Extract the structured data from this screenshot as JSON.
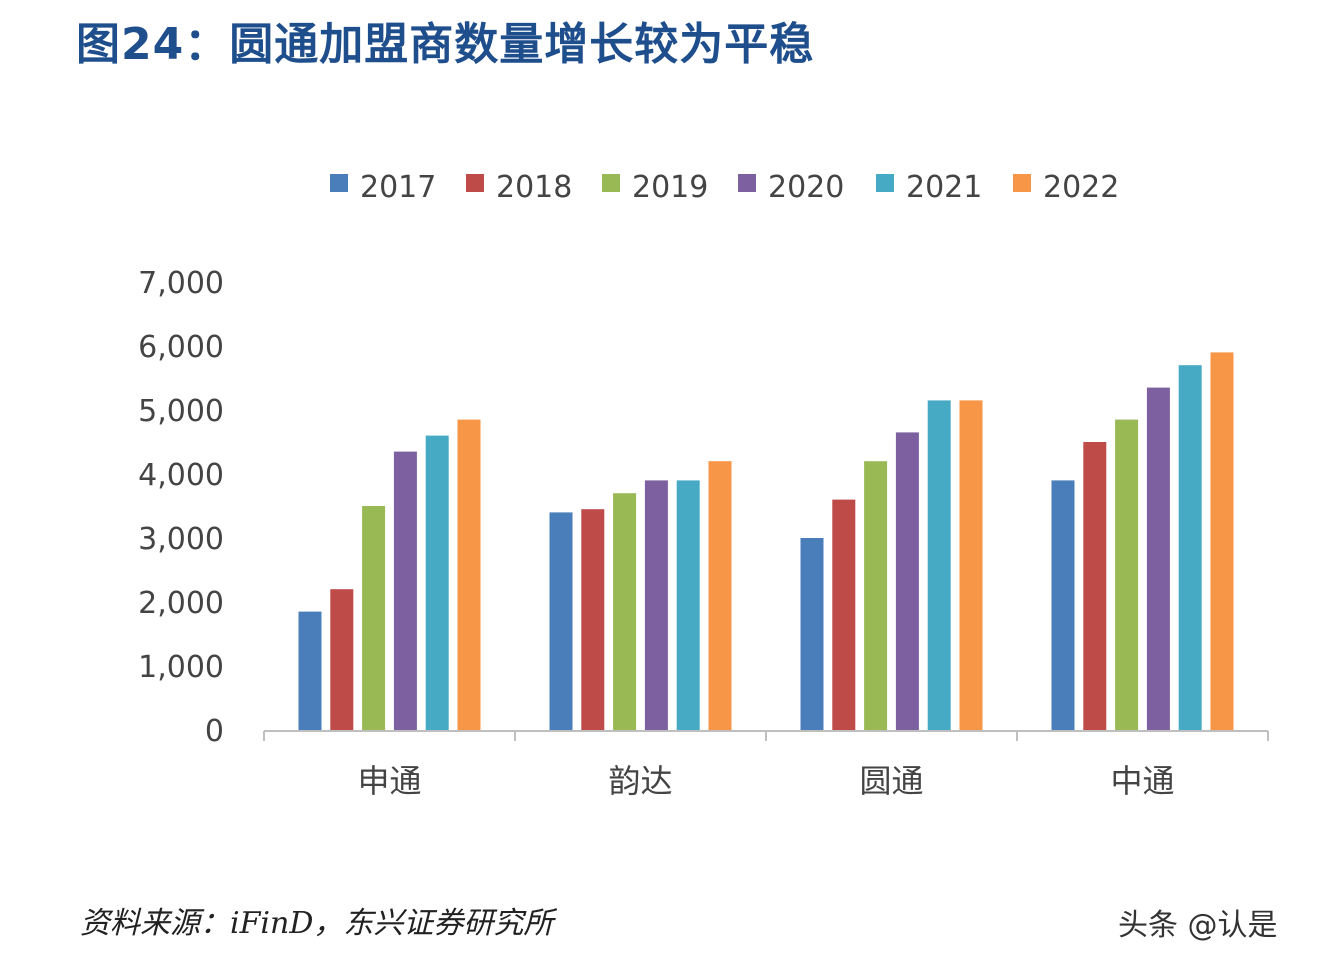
{
  "title": "图24：圆通加盟商数量增长较为平稳",
  "source": "资料来源：iFinD，东兴证券研究所",
  "watermark": "头条 @认是",
  "chart_data": {
    "type": "bar",
    "categories": [
      "申通",
      "韵达",
      "圆通",
      "中通"
    ],
    "series": [
      {
        "name": "2017",
        "color": "#4a7ebb",
        "values": [
          1850,
          3400,
          3000,
          3900
        ]
      },
      {
        "name": "2018",
        "color": "#be4b48",
        "values": [
          2200,
          3450,
          3600,
          4500
        ]
      },
      {
        "name": "2019",
        "color": "#98b954",
        "values": [
          3500,
          3700,
          4200,
          4850
        ]
      },
      {
        "name": "2020",
        "color": "#7d60a0",
        "values": [
          4350,
          3900,
          4650,
          5350
        ]
      },
      {
        "name": "2021",
        "color": "#46aac5",
        "values": [
          4600,
          3900,
          5150,
          5700
        ]
      },
      {
        "name": "2022",
        "color": "#f79646",
        "values": [
          4850,
          4200,
          5150,
          5900
        ]
      }
    ],
    "yticks": [
      "0",
      "1,000",
      "2,000",
      "3,000",
      "4,000",
      "5,000",
      "6,000",
      "7,000"
    ],
    "ylim": [
      0,
      7000
    ],
    "legend_position": "top",
    "grid": false
  }
}
